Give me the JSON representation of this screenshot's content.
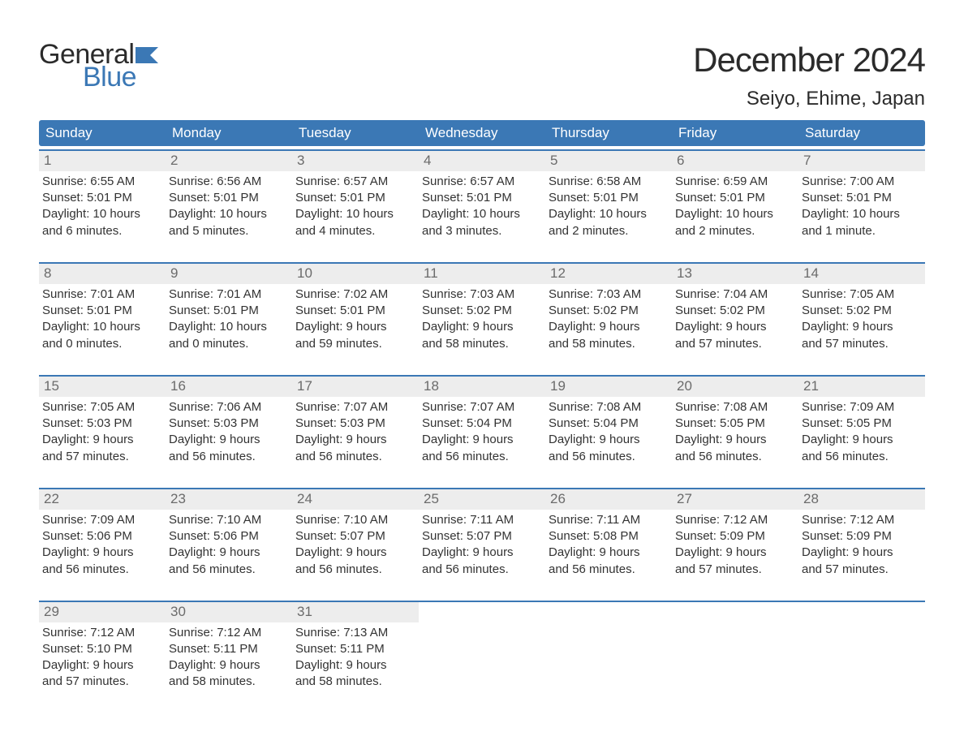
{
  "logo": {
    "word1": "General",
    "word2": "Blue",
    "color_dark": "#2b2b2b",
    "color_blue": "#3b78b5"
  },
  "title": "December 2024",
  "location": "Seiyo, Ehime, Japan",
  "theme": {
    "header_bg": "#3b78b5",
    "header_text": "#ffffff",
    "daynum_bg": "#ededed",
    "daynum_color": "#6b6b6b",
    "body_text": "#333333",
    "week_border": "#3b78b5",
    "page_bg": "#ffffff"
  },
  "layout": {
    "columns": 7,
    "font_family": "Arial, Helvetica, sans-serif",
    "title_fontsize": 42,
    "location_fontsize": 24,
    "dayheader_fontsize": 17,
    "daynum_fontsize": 17,
    "body_fontsize": 15
  },
  "day_names": [
    "Sunday",
    "Monday",
    "Tuesday",
    "Wednesday",
    "Thursday",
    "Friday",
    "Saturday"
  ],
  "weeks": [
    [
      {
        "n": "1",
        "sr": "Sunrise: 6:55 AM",
        "ss": "Sunset: 5:01 PM",
        "d1": "Daylight: 10 hours",
        "d2": "and 6 minutes."
      },
      {
        "n": "2",
        "sr": "Sunrise: 6:56 AM",
        "ss": "Sunset: 5:01 PM",
        "d1": "Daylight: 10 hours",
        "d2": "and 5 minutes."
      },
      {
        "n": "3",
        "sr": "Sunrise: 6:57 AM",
        "ss": "Sunset: 5:01 PM",
        "d1": "Daylight: 10 hours",
        "d2": "and 4 minutes."
      },
      {
        "n": "4",
        "sr": "Sunrise: 6:57 AM",
        "ss": "Sunset: 5:01 PM",
        "d1": "Daylight: 10 hours",
        "d2": "and 3 minutes."
      },
      {
        "n": "5",
        "sr": "Sunrise: 6:58 AM",
        "ss": "Sunset: 5:01 PM",
        "d1": "Daylight: 10 hours",
        "d2": "and 2 minutes."
      },
      {
        "n": "6",
        "sr": "Sunrise: 6:59 AM",
        "ss": "Sunset: 5:01 PM",
        "d1": "Daylight: 10 hours",
        "d2": "and 2 minutes."
      },
      {
        "n": "7",
        "sr": "Sunrise: 7:00 AM",
        "ss": "Sunset: 5:01 PM",
        "d1": "Daylight: 10 hours",
        "d2": "and 1 minute."
      }
    ],
    [
      {
        "n": "8",
        "sr": "Sunrise: 7:01 AM",
        "ss": "Sunset: 5:01 PM",
        "d1": "Daylight: 10 hours",
        "d2": "and 0 minutes."
      },
      {
        "n": "9",
        "sr": "Sunrise: 7:01 AM",
        "ss": "Sunset: 5:01 PM",
        "d1": "Daylight: 10 hours",
        "d2": "and 0 minutes."
      },
      {
        "n": "10",
        "sr": "Sunrise: 7:02 AM",
        "ss": "Sunset: 5:01 PM",
        "d1": "Daylight: 9 hours",
        "d2": "and 59 minutes."
      },
      {
        "n": "11",
        "sr": "Sunrise: 7:03 AM",
        "ss": "Sunset: 5:02 PM",
        "d1": "Daylight: 9 hours",
        "d2": "and 58 minutes."
      },
      {
        "n": "12",
        "sr": "Sunrise: 7:03 AM",
        "ss": "Sunset: 5:02 PM",
        "d1": "Daylight: 9 hours",
        "d2": "and 58 minutes."
      },
      {
        "n": "13",
        "sr": "Sunrise: 7:04 AM",
        "ss": "Sunset: 5:02 PM",
        "d1": "Daylight: 9 hours",
        "d2": "and 57 minutes."
      },
      {
        "n": "14",
        "sr": "Sunrise: 7:05 AM",
        "ss": "Sunset: 5:02 PM",
        "d1": "Daylight: 9 hours",
        "d2": "and 57 minutes."
      }
    ],
    [
      {
        "n": "15",
        "sr": "Sunrise: 7:05 AM",
        "ss": "Sunset: 5:03 PM",
        "d1": "Daylight: 9 hours",
        "d2": "and 57 minutes."
      },
      {
        "n": "16",
        "sr": "Sunrise: 7:06 AM",
        "ss": "Sunset: 5:03 PM",
        "d1": "Daylight: 9 hours",
        "d2": "and 56 minutes."
      },
      {
        "n": "17",
        "sr": "Sunrise: 7:07 AM",
        "ss": "Sunset: 5:03 PM",
        "d1": "Daylight: 9 hours",
        "d2": "and 56 minutes."
      },
      {
        "n": "18",
        "sr": "Sunrise: 7:07 AM",
        "ss": "Sunset: 5:04 PM",
        "d1": "Daylight: 9 hours",
        "d2": "and 56 minutes."
      },
      {
        "n": "19",
        "sr": "Sunrise: 7:08 AM",
        "ss": "Sunset: 5:04 PM",
        "d1": "Daylight: 9 hours",
        "d2": "and 56 minutes."
      },
      {
        "n": "20",
        "sr": "Sunrise: 7:08 AM",
        "ss": "Sunset: 5:05 PM",
        "d1": "Daylight: 9 hours",
        "d2": "and 56 minutes."
      },
      {
        "n": "21",
        "sr": "Sunrise: 7:09 AM",
        "ss": "Sunset: 5:05 PM",
        "d1": "Daylight: 9 hours",
        "d2": "and 56 minutes."
      }
    ],
    [
      {
        "n": "22",
        "sr": "Sunrise: 7:09 AM",
        "ss": "Sunset: 5:06 PM",
        "d1": "Daylight: 9 hours",
        "d2": "and 56 minutes."
      },
      {
        "n": "23",
        "sr": "Sunrise: 7:10 AM",
        "ss": "Sunset: 5:06 PM",
        "d1": "Daylight: 9 hours",
        "d2": "and 56 minutes."
      },
      {
        "n": "24",
        "sr": "Sunrise: 7:10 AM",
        "ss": "Sunset: 5:07 PM",
        "d1": "Daylight: 9 hours",
        "d2": "and 56 minutes."
      },
      {
        "n": "25",
        "sr": "Sunrise: 7:11 AM",
        "ss": "Sunset: 5:07 PM",
        "d1": "Daylight: 9 hours",
        "d2": "and 56 minutes."
      },
      {
        "n": "26",
        "sr": "Sunrise: 7:11 AM",
        "ss": "Sunset: 5:08 PM",
        "d1": "Daylight: 9 hours",
        "d2": "and 56 minutes."
      },
      {
        "n": "27",
        "sr": "Sunrise: 7:12 AM",
        "ss": "Sunset: 5:09 PM",
        "d1": "Daylight: 9 hours",
        "d2": "and 57 minutes."
      },
      {
        "n": "28",
        "sr": "Sunrise: 7:12 AM",
        "ss": "Sunset: 5:09 PM",
        "d1": "Daylight: 9 hours",
        "d2": "and 57 minutes."
      }
    ],
    [
      {
        "n": "29",
        "sr": "Sunrise: 7:12 AM",
        "ss": "Sunset: 5:10 PM",
        "d1": "Daylight: 9 hours",
        "d2": "and 57 minutes."
      },
      {
        "n": "30",
        "sr": "Sunrise: 7:12 AM",
        "ss": "Sunset: 5:11 PM",
        "d1": "Daylight: 9 hours",
        "d2": "and 58 minutes."
      },
      {
        "n": "31",
        "sr": "Sunrise: 7:13 AM",
        "ss": "Sunset: 5:11 PM",
        "d1": "Daylight: 9 hours",
        "d2": "and 58 minutes."
      },
      null,
      null,
      null,
      null
    ]
  ]
}
